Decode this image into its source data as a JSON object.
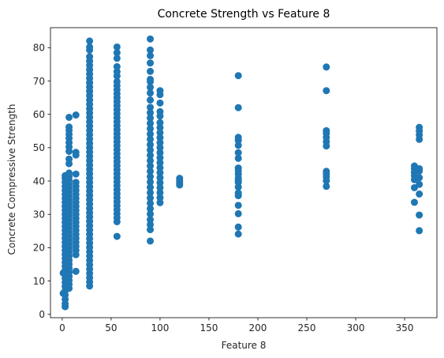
{
  "chart_data": {
    "type": "scatter",
    "title": "Concrete Strength vs Feature 8",
    "xlabel": "Feature 8",
    "ylabel": "Concrete Compressive Strength",
    "xlim": [
      -12,
      383
    ],
    "ylim": [
      -1,
      86
    ],
    "xticks": [
      0,
      50,
      100,
      150,
      200,
      250,
      300,
      350
    ],
    "yticks": [
      0,
      10,
      20,
      30,
      40,
      50,
      60,
      70,
      80
    ],
    "grid": false,
    "color": "#1f77b4",
    "clusters": [
      {
        "x": 1,
        "y": [
          6.3,
          12.4
        ]
      },
      {
        "x": 3,
        "y": [
          2.3,
          3.2,
          4.5,
          5.8,
          7.1,
          8.4,
          9.6,
          10.8,
          12.0,
          13.2,
          14.4,
          15.6,
          16.8,
          18.0,
          19.2,
          20.4,
          21.6,
          22.8,
          24.0,
          25.2,
          26.4,
          27.6,
          28.8,
          30.0,
          31.2,
          32.4,
          33.6,
          34.8,
          36.0,
          37.2,
          38.4,
          39.6,
          40.8,
          41.6
        ]
      },
      {
        "x": 7,
        "y": [
          7.8,
          9.0,
          10.2,
          11.4,
          12.6,
          13.8,
          15.0,
          16.2,
          17.4,
          18.6,
          19.8,
          21.0,
          22.2,
          23.4,
          24.6,
          25.8,
          27.0,
          28.2,
          29.4,
          30.6,
          31.8,
          33.0,
          34.2,
          35.4,
          36.6,
          37.8,
          39.0,
          40.2,
          41.4,
          42.4,
          45.2,
          46.6,
          48.9,
          50.2,
          51.5,
          52.8,
          54.0,
          55.2,
          56.2,
          59.1
        ]
      },
      {
        "x": 14,
        "y": [
          12.9,
          17.9,
          19.2,
          20.4,
          21.6,
          22.8,
          24.0,
          25.2,
          26.4,
          27.6,
          28.8,
          30.0,
          31.2,
          32.4,
          33.6,
          34.8,
          36.0,
          37.2,
          38.4,
          39.6,
          42.1,
          47.8,
          48.6,
          59.8
        ]
      },
      {
        "x": 28,
        "y": [
          8.5,
          9.7,
          11.0,
          12.3,
          13.6,
          14.9,
          16.2,
          17.5,
          18.8,
          20.1,
          21.4,
          22.7,
          24.0,
          25.3,
          26.6,
          27.9,
          29.2,
          30.5,
          31.8,
          33.1,
          34.4,
          35.7,
          37.0,
          38.3,
          39.6,
          40.9,
          42.2,
          43.5,
          44.8,
          46.1,
          47.4,
          48.7,
          50.0,
          51.3,
          52.6,
          53.9,
          55.2,
          56.5,
          57.8,
          59.1,
          60.4,
          61.7,
          63.0,
          64.3,
          65.6,
          66.9,
          68.2,
          69.5,
          70.8,
          72.1,
          73.4,
          74.7,
          76.0,
          77.3,
          79.3,
          80.2,
          82.0
        ]
      },
      {
        "x": 56,
        "y": [
          23.4,
          27.8,
          29.0,
          30.2,
          31.4,
          32.6,
          33.8,
          35.0,
          36.2,
          37.4,
          38.6,
          39.8,
          41.0,
          42.2,
          43.4,
          44.6,
          45.8,
          47.0,
          48.2,
          49.4,
          50.6,
          51.8,
          53.0,
          54.2,
          55.4,
          56.6,
          57.8,
          59.0,
          60.2,
          61.4,
          62.6,
          63.8,
          65.0,
          66.2,
          67.4,
          68.6,
          69.8,
          71.5,
          72.8,
          74.3,
          76.8,
          78.5,
          80.2
        ]
      },
      {
        "x": 90,
        "y": [
          22.0,
          25.4,
          26.9,
          28.4,
          30.1,
          31.7,
          33.3,
          34.9,
          36.5,
          38.1,
          39.7,
          41.3,
          42.9,
          44.5,
          46.1,
          47.7,
          49.3,
          50.9,
          52.5,
          54.1,
          55.7,
          57.3,
          58.9,
          60.5,
          62.1,
          64.3,
          66.4,
          68.1,
          69.8,
          70.5,
          72.9,
          75.4,
          77.6,
          79.3,
          82.6
        ]
      },
      {
        "x": 100,
        "y": [
          33.5,
          35.0,
          36.5,
          38.0,
          39.5,
          41.0,
          42.5,
          44.0,
          45.5,
          47.0,
          48.5,
          50.0,
          51.5,
          53.0,
          54.5,
          56.0,
          57.5,
          59.5,
          60.8,
          63.4,
          65.9,
          67.1
        ]
      },
      {
        "x": 120,
        "y": [
          38.8,
          39.4,
          40.1,
          40.8
        ]
      },
      {
        "x": 180,
        "y": [
          24.1,
          26.2,
          30.2,
          32.7,
          35.6,
          36.4,
          38.2,
          39.6,
          40.2,
          40.9,
          42.1,
          43.1,
          43.9,
          46.8,
          48.5,
          50.7,
          52.2,
          53.1,
          62.0,
          71.6
        ]
      },
      {
        "x": 270,
        "y": [
          38.4,
          40.1,
          41.2,
          42.1,
          42.9,
          50.5,
          51.8,
          53.1,
          54.3,
          55.1,
          67.1,
          74.2
        ]
      },
      {
        "x": 360,
        "y": [
          33.6,
          38.0,
          40.4,
          41.6,
          42.6,
          43.7,
          44.5
        ]
      },
      {
        "x": 365,
        "y": [
          25.1,
          29.8,
          36.1,
          39.0,
          41.0,
          43.0,
          43.7,
          52.5,
          53.8,
          55.0,
          56.1
        ]
      }
    ]
  }
}
